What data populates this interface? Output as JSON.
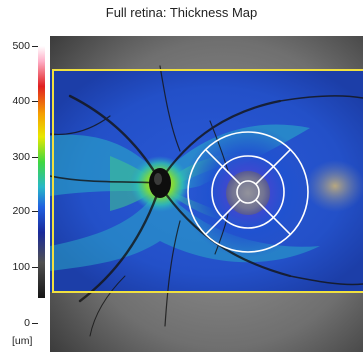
{
  "title": "Full retina: Thickness Map",
  "scale": {
    "ticks": [
      "500",
      "400",
      "300",
      "200",
      "100",
      "0"
    ],
    "unit": "[um]"
  },
  "colors": {
    "grid_lines": "#ffffff",
    "scan_border": "#f0e040"
  }
}
